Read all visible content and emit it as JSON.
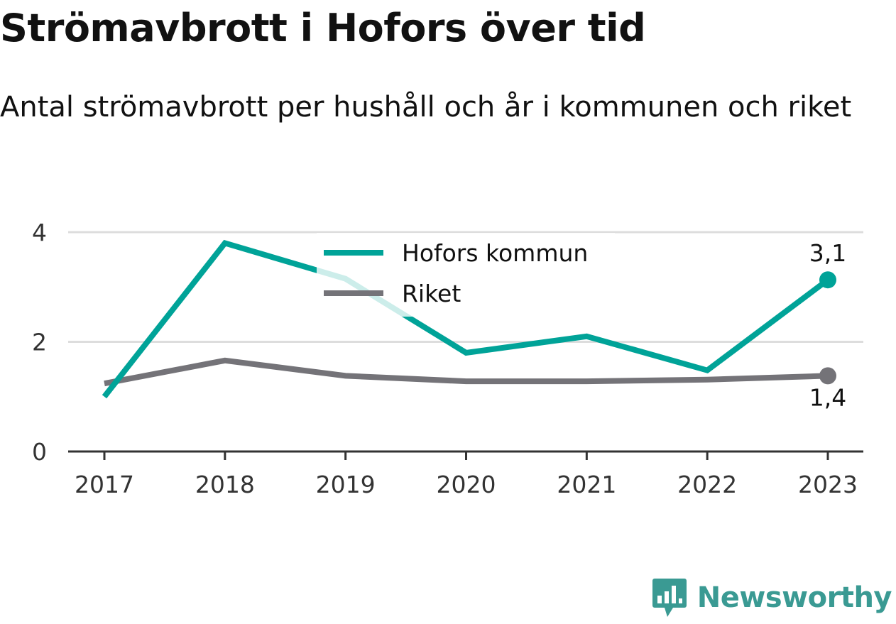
{
  "title": "Strömavbrott i Hofors över tid",
  "subtitle": "Antal strömavbrott per hushåll och år i kommunen och riket",
  "brand": {
    "name": "Newsworthy",
    "icon": "newsworthy-logo-icon"
  },
  "chart_data": {
    "type": "line",
    "x": [
      "2017",
      "2018",
      "2019",
      "2020",
      "2021",
      "2022",
      "2023"
    ],
    "y_ticks": [
      "0",
      "2",
      "4"
    ],
    "ylim": [
      0,
      4
    ],
    "grid": true,
    "legend_position": "top-center",
    "series": [
      {
        "name": "Hofors kommun",
        "color": "#00a398",
        "values": [
          1.0,
          3.8,
          3.15,
          1.8,
          2.1,
          1.48,
          3.13
        ],
        "end_label": "3,1"
      },
      {
        "name": "Riket",
        "color": "#747378",
        "values": [
          1.24,
          1.66,
          1.38,
          1.28,
          1.28,
          1.31,
          1.38
        ],
        "end_label": "1,4"
      }
    ]
  }
}
